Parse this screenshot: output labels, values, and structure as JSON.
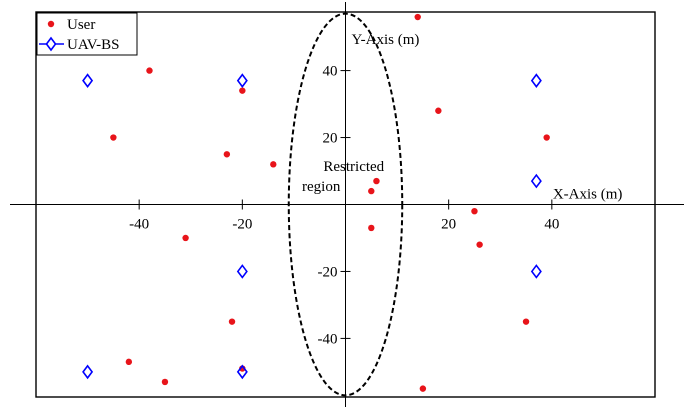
{
  "chart_data": {
    "type": "scatter",
    "xlim": [
      -60,
      60
    ],
    "ylim": [
      -57.5,
      57.5
    ],
    "x_ticks": [
      -40,
      -20,
      20,
      40
    ],
    "y_ticks": [
      40,
      20,
      -20,
      -40
    ],
    "xlabel": "X-Axis (m)",
    "ylabel": "Y-Axis (m)",
    "legend": {
      "position": "top-left"
    },
    "series": [
      {
        "name": "User",
        "marker": "dot",
        "color": "#e8141a",
        "points": [
          [
            -38,
            40
          ],
          [
            -20,
            34
          ],
          [
            -45,
            20
          ],
          [
            -23,
            15
          ],
          [
            -14,
            12
          ],
          [
            -31,
            -10
          ],
          [
            -22,
            -35
          ],
          [
            -42,
            -47
          ],
          [
            -35,
            -53
          ],
          [
            -20,
            -49
          ],
          [
            14,
            56
          ],
          [
            18,
            28
          ],
          [
            6,
            7
          ],
          [
            5,
            4
          ],
          [
            5,
            -7
          ],
          [
            25,
            -2
          ],
          [
            26,
            -12
          ],
          [
            35,
            -35
          ],
          [
            39,
            20
          ],
          [
            15,
            -55
          ]
        ]
      },
      {
        "name": "UAV-BS",
        "marker": "diamond",
        "color": "#0000ff",
        "points": [
          [
            -50,
            37
          ],
          [
            -20,
            37
          ],
          [
            37,
            37
          ],
          [
            37,
            7
          ],
          [
            -20,
            -20
          ],
          [
            37,
            -20
          ],
          [
            -50,
            -50
          ],
          [
            -20,
            -50
          ]
        ]
      }
    ],
    "annotations": [
      {
        "shape": "ellipse",
        "label_lines": [
          "Restricted",
          "region"
        ],
        "center": [
          0,
          0
        ],
        "radius_x": 11,
        "radius_y": 57
      }
    ]
  }
}
